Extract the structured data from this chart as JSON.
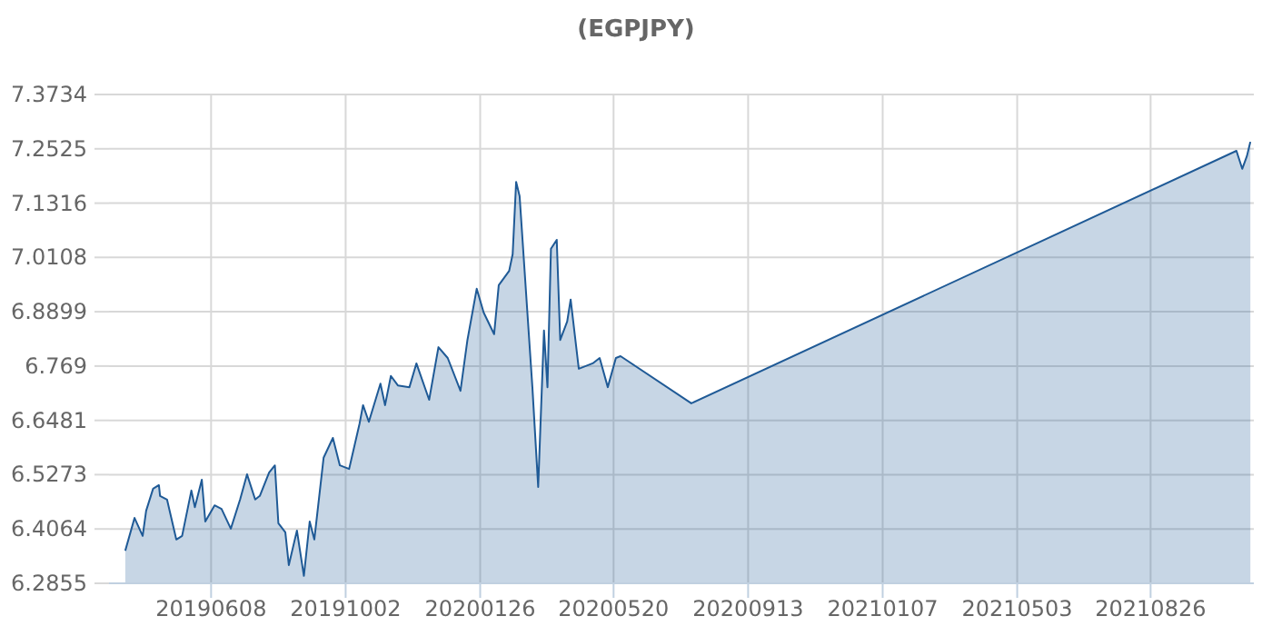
{
  "chart_data": {
    "type": "area",
    "title": "(EGPJPY)",
    "xlim": [
      "2019-03-12",
      "2021-11-23"
    ],
    "xticks": [
      {
        "value": "2019-06-08",
        "label": "20190608"
      },
      {
        "value": "2019-10-02",
        "label": "20191002"
      },
      {
        "value": "2020-01-26",
        "label": "20200126"
      },
      {
        "value": "2020-05-20",
        "label": "20200520"
      },
      {
        "value": "2020-09-13",
        "label": "20200913"
      },
      {
        "value": "2021-01-07",
        "label": "20210107"
      },
      {
        "value": "2021-05-03",
        "label": "20210503"
      },
      {
        "value": "2021-08-26",
        "label": "20210826"
      }
    ],
    "ylim": [
      6.2855,
      7.3734
    ],
    "yticks": [
      6.2855,
      6.4064,
      6.5273,
      6.6481,
      6.769,
      6.8899,
      7.0108,
      7.1316,
      7.2525,
      7.3734
    ],
    "grid": true,
    "series": [
      {
        "color": "#1f5a96",
        "x": [
          "2019-03-26",
          "2019-04-03",
          "2019-04-10",
          "2019-04-13",
          "2019-04-19",
          "2019-04-24",
          "2019-04-25",
          "2019-05-01",
          "2019-05-09",
          "2019-05-14",
          "2019-05-22",
          "2019-05-25",
          "2019-05-31",
          "2019-06-03",
          "2019-06-11",
          "2019-06-17",
          "2019-06-25",
          "2019-07-03",
          "2019-07-09",
          "2019-07-16",
          "2019-07-20",
          "2019-07-28",
          "2019-08-02",
          "2019-08-05",
          "2019-08-11",
          "2019-08-14",
          "2019-08-21",
          "2019-08-27",
          "2019-09-01",
          "2019-09-05",
          "2019-09-13",
          "2019-09-21",
          "2019-09-27",
          "2019-10-05",
          "2019-10-14",
          "2019-10-17",
          "2019-10-22",
          "2019-11-01",
          "2019-11-05",
          "2019-11-10",
          "2019-11-16",
          "2019-11-26",
          "2019-12-02",
          "2019-12-13",
          "2019-12-21",
          "2019-12-29",
          "2020-01-09",
          "2020-01-15",
          "2020-01-23",
          "2020-01-29",
          "2020-02-07",
          "2020-02-11",
          "2020-02-20",
          "2020-02-23",
          "2020-02-26",
          "2020-02-29",
          "2020-03-07",
          "2020-03-11",
          "2020-03-16",
          "2020-03-21",
          "2020-03-24",
          "2020-03-27",
          "2020-04-01",
          "2020-04-04",
          "2020-04-10",
          "2020-04-13",
          "2020-04-20",
          "2020-05-02",
          "2020-05-08",
          "2020-05-15",
          "2020-05-22",
          "2020-05-26",
          "2020-07-26",
          "2021-11-08",
          "2021-11-13",
          "2021-11-17",
          "2021-11-20"
        ],
        "values": [
          6.358,
          6.431,
          6.391,
          6.447,
          6.496,
          6.504,
          6.48,
          6.472,
          6.383,
          6.391,
          6.492,
          6.455,
          6.516,
          6.423,
          6.459,
          6.451,
          6.407,
          6.472,
          6.528,
          6.472,
          6.48,
          6.532,
          6.548,
          6.419,
          6.399,
          6.326,
          6.403,
          6.302,
          6.423,
          6.383,
          6.565,
          6.609,
          6.548,
          6.54,
          6.641,
          6.682,
          6.645,
          6.73,
          6.682,
          6.747,
          6.726,
          6.722,
          6.775,
          6.694,
          6.811,
          6.787,
          6.714,
          6.827,
          6.941,
          6.888,
          6.84,
          6.949,
          6.981,
          7.018,
          7.179,
          7.147,
          6.876,
          6.722,
          6.5,
          6.848,
          6.722,
          7.03,
          7.05,
          6.827,
          6.868,
          6.917,
          6.763,
          6.775,
          6.787,
          6.722,
          6.787,
          6.791,
          6.686,
          7.248,
          7.208,
          7.236,
          7.268
        ]
      }
    ]
  }
}
